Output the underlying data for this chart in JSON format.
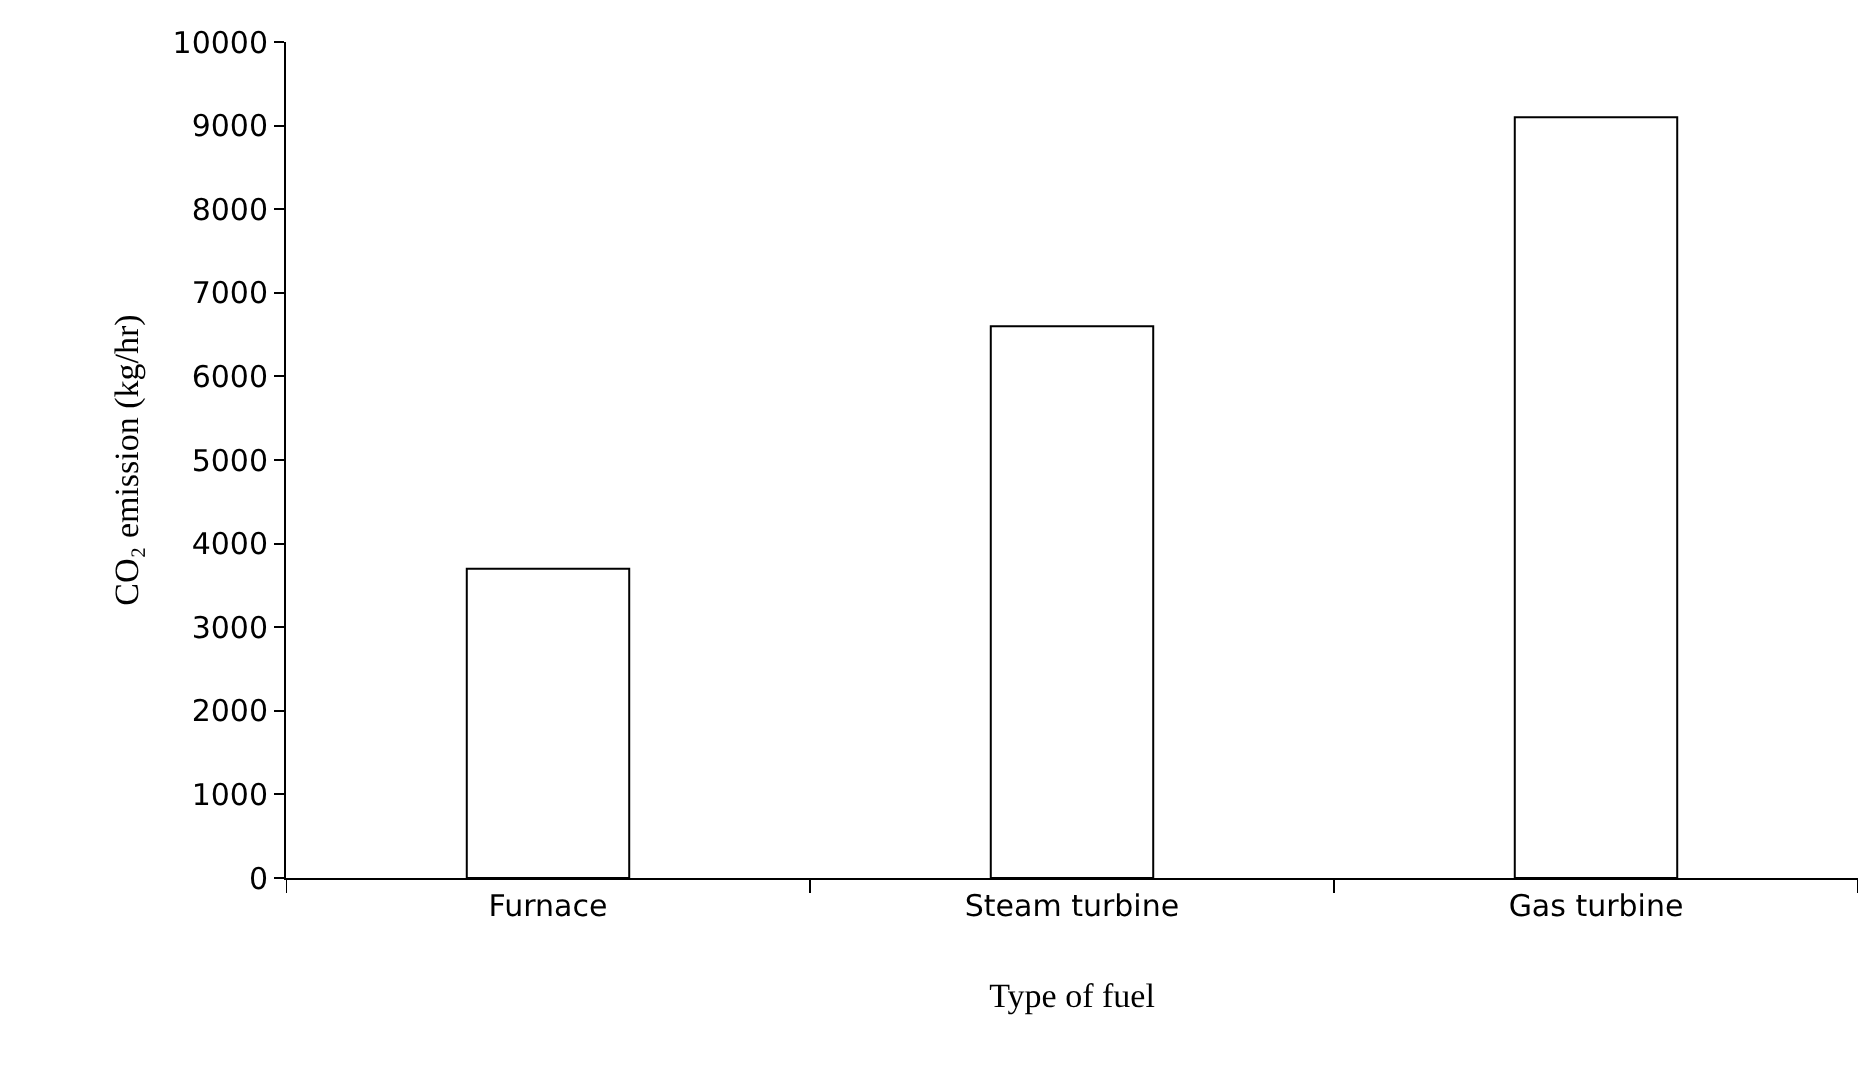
{
  "chart_data": {
    "type": "bar",
    "xlabel": "Type of fuel",
    "ylabel": "CO₂ emission (kg/hr)",
    "categories": [
      "Furnace",
      "Steam turbine",
      "Gas turbine"
    ],
    "values": [
      3700,
      6600,
      9100
    ],
    "color": "#ffffff",
    "ylim": [
      0,
      10000
    ],
    "yticks": [
      0,
      1000,
      2000,
      3000,
      4000,
      5000,
      6000,
      7000,
      8000,
      9000,
      10000
    ],
    "grid": false
  }
}
